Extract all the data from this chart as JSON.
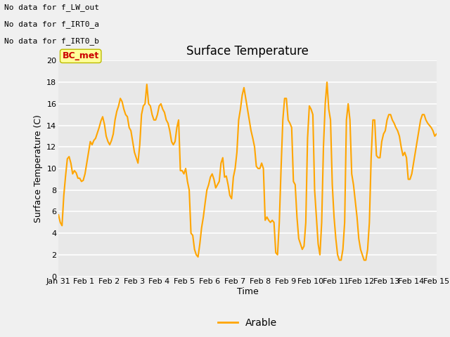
{
  "title": "Surface Temperature",
  "xlabel": "Time",
  "ylabel": "Surface Temperature (C)",
  "ylim": [
    0,
    20
  ],
  "yticks": [
    0,
    2,
    4,
    6,
    8,
    10,
    12,
    14,
    16,
    18,
    20
  ],
  "line_color": "#FFA500",
  "line_width": 1.5,
  "bg_color": "#E8E8E8",
  "legend_label": "Arable",
  "text_annotations": [
    "No data for f_LW_out",
    "No data for f_IRT0_a",
    "No data for f_IRT0_b"
  ],
  "legend_box_facecolor": "#FFFF99",
  "legend_box_edgecolor": "#BBBB00",
  "bc_met_color": "#CC0000",
  "x_tick_labels": [
    "Jan 31",
    "Feb 1",
    "Feb 2",
    "Feb 3",
    "Feb 4",
    "Feb 5",
    "Feb 6",
    "Feb 7",
    "Feb 8",
    "Feb 9",
    "Feb 10",
    "Feb 11",
    "Feb 12",
    "Feb 13",
    "Feb 14",
    "Feb 15"
  ],
  "x_values": [
    0,
    1,
    2,
    3,
    4,
    5,
    6,
    7,
    8,
    9,
    10,
    11,
    12,
    13,
    14,
    15
  ],
  "y_data": [
    5.7,
    5.0,
    4.7,
    7.5,
    9.3,
    10.9,
    11.1,
    10.5,
    9.5,
    9.8,
    9.6,
    9.1,
    9.1,
    8.8,
    8.9,
    9.5,
    10.5,
    11.5,
    12.5,
    12.2,
    12.6,
    12.8,
    13.3,
    13.8,
    14.4,
    14.8,
    14.1,
    13.0,
    12.5,
    12.2,
    12.6,
    13.2,
    14.5,
    15.3,
    15.8,
    16.5,
    16.2,
    15.5,
    15.0,
    14.8,
    13.8,
    13.5,
    12.5,
    11.5,
    11.0,
    10.5,
    12.2,
    15.0,
    15.8,
    16.0,
    17.8,
    16.0,
    15.8,
    15.0,
    14.5,
    14.5,
    15.0,
    15.8,
    16.0,
    15.5,
    15.2,
    14.5,
    14.2,
    13.5,
    12.5,
    12.2,
    12.5,
    13.8,
    14.5,
    9.8,
    9.8,
    9.5,
    10.0,
    8.8,
    8.0,
    4.0,
    3.8,
    2.5,
    2.0,
    1.8,
    3.0,
    4.5,
    5.5,
    6.8,
    8.0,
    8.5,
    9.2,
    9.5,
    9.0,
    8.2,
    8.5,
    8.8,
    10.5,
    11.0,
    9.2,
    9.3,
    8.5,
    7.5,
    7.2,
    9.2,
    10.0,
    11.5,
    14.5,
    15.5,
    16.8,
    17.5,
    16.5,
    15.5,
    14.5,
    13.5,
    12.8,
    12.0,
    10.2,
    10.0,
    10.0,
    10.5,
    10.0,
    5.2,
    5.5,
    5.2,
    5.0,
    5.2,
    5.0,
    2.2,
    2.0,
    5.0,
    10.0,
    14.5,
    16.5,
    16.5,
    14.5,
    14.2,
    13.8,
    8.8,
    8.5,
    5.5,
    3.5,
    3.0,
    2.5,
    2.8,
    5.0,
    12.8,
    15.8,
    15.5,
    15.0,
    8.0,
    5.5,
    3.0,
    2.0,
    5.0,
    12.0,
    16.0,
    18.0,
    15.5,
    14.5,
    8.5,
    5.5,
    3.5,
    2.0,
    1.5,
    1.5,
    2.5,
    5.0,
    14.5,
    16.0,
    14.5,
    9.5,
    8.5,
    7.0,
    5.5,
    3.5,
    2.5,
    2.0,
    1.5,
    1.5,
    2.5,
    5.0,
    11.0,
    14.5,
    14.5,
    11.2,
    11.0,
    11.0,
    12.5,
    13.2,
    13.5,
    14.5,
    15.0,
    15.0,
    14.5,
    14.2,
    13.8,
    13.5,
    13.0,
    12.0,
    11.2,
    11.5,
    11.0,
    9.0,
    9.0,
    9.5,
    10.5,
    11.5,
    12.5,
    13.5,
    14.5,
    15.0,
    15.0,
    14.5,
    14.2,
    14.0,
    13.8,
    13.5,
    13.0,
    13.2
  ],
  "fig_facecolor": "#F0F0F0",
  "annot_fontsize": 8,
  "title_fontsize": 12,
  "axis_label_fontsize": 9,
  "tick_fontsize": 8
}
